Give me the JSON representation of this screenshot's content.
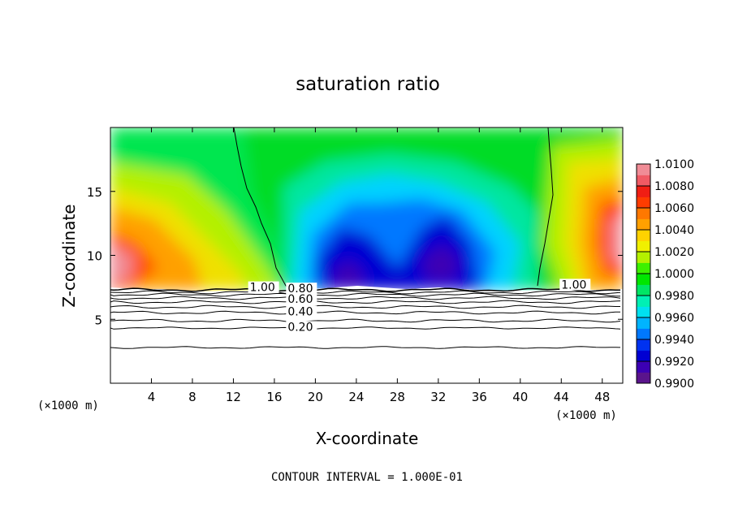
{
  "chart_data": {
    "type": "heatmap",
    "title": "saturation ratio",
    "xlabel": "X-coordinate",
    "ylabel": "Z-coordinate",
    "x_unit_left": "(×1000 m)",
    "x_unit_right": "(×1000 m)",
    "xlim": [
      0,
      50
    ],
    "ylim": [
      0,
      20
    ],
    "x_ticks": [
      4,
      8,
      12,
      16,
      20,
      24,
      28,
      32,
      36,
      40,
      44,
      48
    ],
    "x_tick_labels": [
      "4",
      "8",
      "12",
      "16",
      "20",
      "24",
      "28",
      "32",
      "36",
      "40",
      "44",
      "48"
    ],
    "y_ticks": [
      5,
      10,
      15
    ],
    "y_tick_labels": [
      "5",
      "10",
      "15"
    ],
    "colorbar": {
      "min": 0.99,
      "max": 1.01,
      "labels": [
        "1.0100",
        "1.0080",
        "1.0060",
        "1.0040",
        "1.0020",
        "1.0000",
        "0.9980",
        "0.9960",
        "0.9940",
        "0.9920",
        "0.9900"
      ]
    },
    "contour_levels": [
      0.1,
      0.2,
      0.3,
      0.4,
      0.5,
      0.6,
      0.7,
      0.8,
      0.9,
      1.0
    ],
    "contour_labels": [
      {
        "text": "1.00",
        "x": 13.6,
        "y": 7.2
      },
      {
        "text": "0.80",
        "x": 17.3,
        "y": 7.1
      },
      {
        "text": "0.60",
        "x": 17.3,
        "y": 6.3
      },
      {
        "text": "0.40",
        "x": 17.3,
        "y": 5.3
      },
      {
        "text": "0.20",
        "x": 17.3,
        "y": 4.1
      },
      {
        "text": "1.00",
        "x": 44.0,
        "y": 7.4
      }
    ],
    "footer": "CONTOUR INTERVAL = 1.000E-01"
  }
}
